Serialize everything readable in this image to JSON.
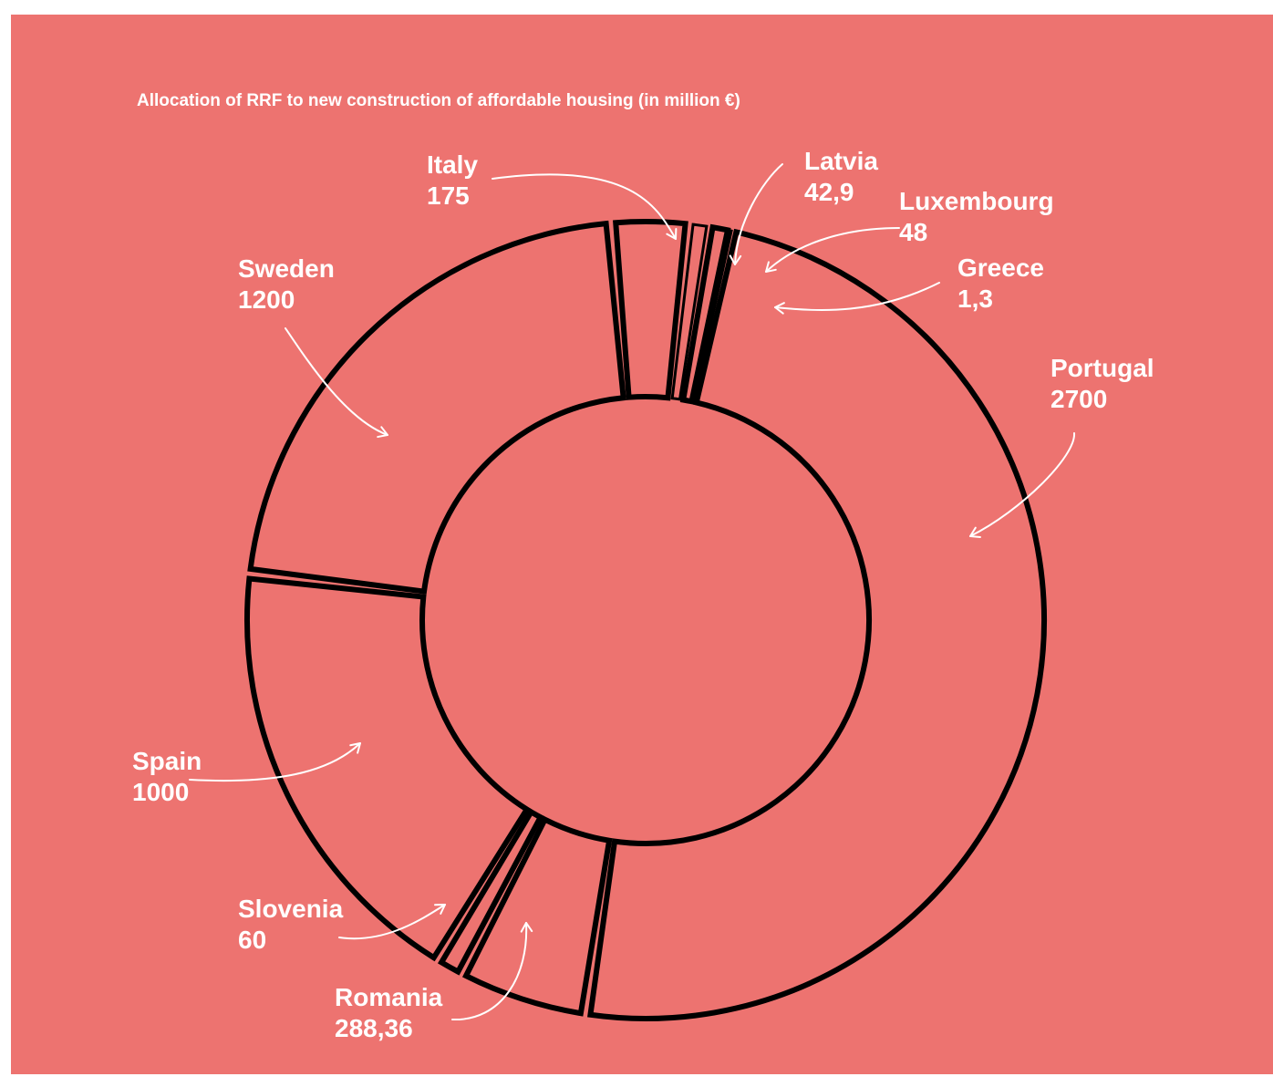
{
  "colors": {
    "background": "#ed7370",
    "outline": "#000000",
    "text": "#ffffff"
  },
  "chart_data": {
    "type": "pie",
    "variant": "donut",
    "title": "Allocation of RRF to new construction of affordable housing (in million €)",
    "unit": "million €",
    "slices": [
      {
        "name": "Italy",
        "value": 175,
        "value_label": "175"
      },
      {
        "name": "Latvia",
        "value": 42.9,
        "value_label": "42,9"
      },
      {
        "name": "Luxembourg",
        "value": 48,
        "value_label": "48"
      },
      {
        "name": "Greece",
        "value": 1.3,
        "value_label": "1,3"
      },
      {
        "name": "Portugal",
        "value": 2700,
        "value_label": "2700"
      },
      {
        "name": "Romania",
        "value": 288.36,
        "value_label": "288,36"
      },
      {
        "name": "Slovenia",
        "value": 60,
        "value_label": "60"
      },
      {
        "name": "Spain",
        "value": 1000,
        "value_label": "1000"
      },
      {
        "name": "Sweden",
        "value": 1200,
        "value_label": "1200"
      }
    ]
  }
}
